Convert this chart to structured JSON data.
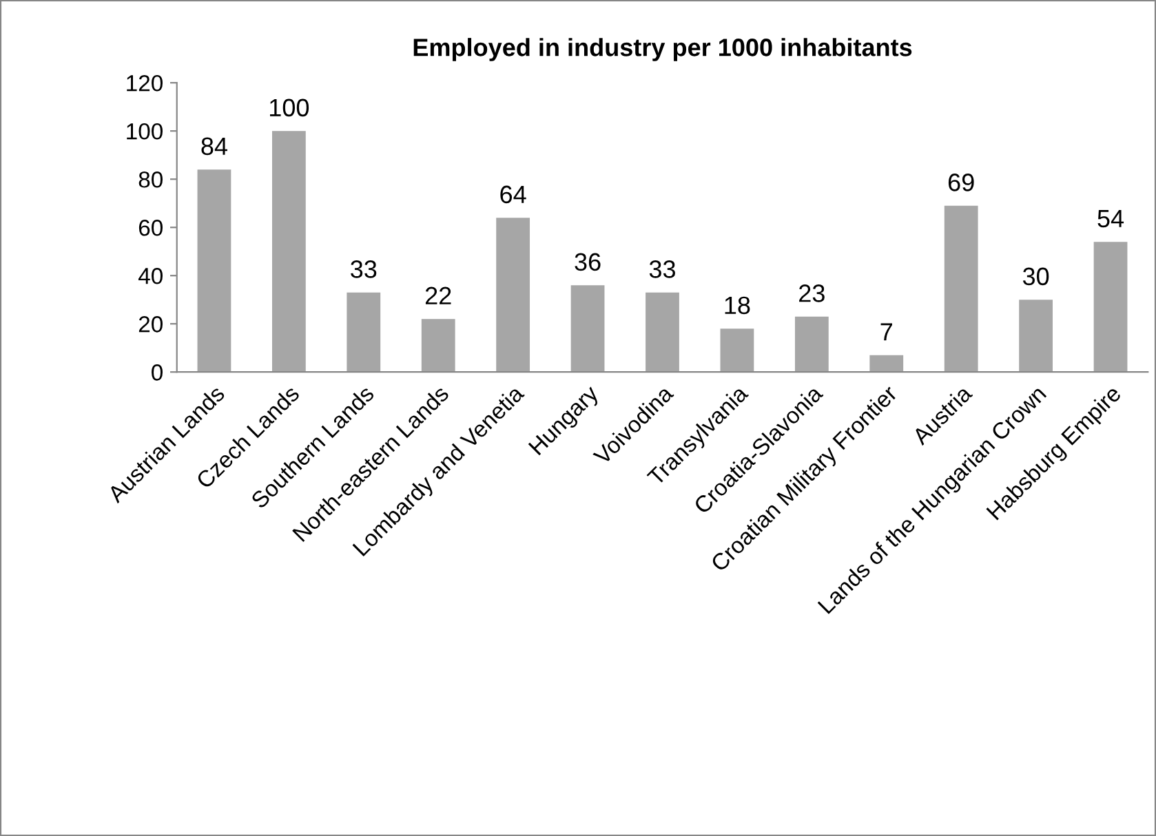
{
  "chart_data": {
    "type": "bar",
    "title": "Employed in industry per 1000 inhabitants",
    "categories": [
      "Austrian Lands",
      "Czech Lands",
      "Southern Lands",
      "North-eastern Lands",
      "Lombardy and Venetia",
      "Hungary",
      "Voivodina",
      "Transylvania",
      "Croatia-Slavonia",
      "Croatian Military Frontier",
      "Austria",
      "Lands of the Hungarian Crown",
      "Habsburg Empire"
    ],
    "values": [
      84,
      100,
      33,
      22,
      64,
      36,
      33,
      18,
      23,
      7,
      69,
      30,
      54
    ],
    "color": "#a6a6a6",
    "ylim": [
      0,
      120
    ],
    "yticks": [
      0,
      20,
      40,
      60,
      80,
      100,
      120
    ],
    "data_labels": true,
    "grid": false,
    "legend": false
  }
}
